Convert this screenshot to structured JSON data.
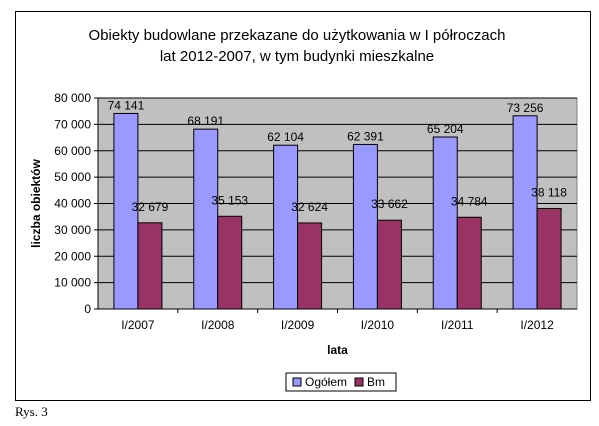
{
  "chart_data": {
    "type": "bar",
    "title_lines": [
      "Obiekty budowlane przekazane do użytkowania w I półroczach",
      "lat 2012-2007, w tym budynki mieszkalne"
    ],
    "categories": [
      "I/2007",
      "I/2008",
      "I/2009",
      "I/2010",
      "I/2011",
      "I/2012"
    ],
    "series": [
      {
        "name": "Ogółem",
        "values": [
          74141,
          68191,
          62104,
          62391,
          65204,
          73256
        ],
        "labels": [
          "74 141",
          "68 191",
          "62 104",
          "62 391",
          "65 204",
          "73 256"
        ],
        "color": "#9999FF"
      },
      {
        "name": "Bm",
        "values": [
          32679,
          35153,
          32624,
          33662,
          34784,
          38118
        ],
        "labels": [
          "32 679",
          "35 153",
          "32 624",
          "33 662",
          "34 784",
          "38 118"
        ],
        "color": "#993366"
      }
    ],
    "xlabel": "lata",
    "ylabel": "liczba obiektów",
    "ylim": [
      0,
      80000
    ],
    "yticks": [
      0,
      10000,
      20000,
      30000,
      40000,
      50000,
      60000,
      70000,
      80000
    ],
    "ytick_labels": [
      "0",
      "10 000",
      "20 000",
      "30 000",
      "40 000",
      "50 000",
      "60 000",
      "70 000",
      "80 000"
    ],
    "grid": true,
    "plot_background": "#C0C0C0",
    "legend_position": "bottom"
  },
  "caption": "Rys. 3"
}
